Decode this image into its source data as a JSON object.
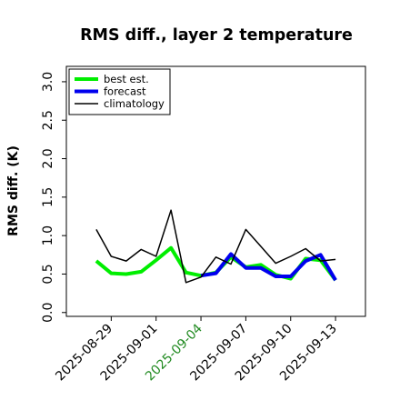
{
  "chart_data": {
    "type": "line",
    "title": "RMS diff., layer 2 temperature",
    "xlabel": "",
    "ylabel": "RMS diff. (K)",
    "ylim": [
      -0.05,
      3.2
    ],
    "xlim": [
      "2025-08-26",
      "2025-09-15"
    ],
    "yticks": [
      "0.0",
      "0.5",
      "1.0",
      "1.5",
      "2.0",
      "2.5",
      "3.0"
    ],
    "xticks": [
      {
        "label": "2025-08-29",
        "date": "2025-08-29",
        "color": "#000000"
      },
      {
        "label": "2025-09-01",
        "date": "2025-09-01",
        "color": "#000000"
      },
      {
        "label": "2025-09-04",
        "date": "2025-09-04",
        "color": "#228B22"
      },
      {
        "label": "2025-09-07",
        "date": "2025-09-07",
        "color": "#000000"
      },
      {
        "label": "2025-09-10",
        "date": "2025-09-10",
        "color": "#000000"
      },
      {
        "label": "2025-09-13",
        "date": "2025-09-13",
        "color": "#000000"
      }
    ],
    "grid": false,
    "legend_position": "top-left",
    "series": [
      {
        "name": "best est.",
        "color": "#00ee00",
        "dates": [
          "2025-08-28",
          "2025-08-29",
          "2025-08-30",
          "2025-08-31",
          "2025-09-01",
          "2025-09-02",
          "2025-09-03",
          "2025-09-04",
          "2025-09-05",
          "2025-09-06",
          "2025-09-07",
          "2025-09-08",
          "2025-09-09",
          "2025-09-10",
          "2025-09-11",
          "2025-09-12",
          "2025-09-13"
        ],
        "values": [
          0.67,
          0.51,
          0.5,
          0.53,
          0.68,
          0.84,
          0.52,
          0.48,
          0.52,
          0.72,
          0.59,
          0.62,
          0.49,
          0.44,
          0.7,
          0.68,
          0.42
        ]
      },
      {
        "name": "forecast",
        "color": "#0000ee",
        "dates": [
          "2025-09-04",
          "2025-09-05",
          "2025-09-06",
          "2025-09-07",
          "2025-09-08",
          "2025-09-09",
          "2025-09-10",
          "2025-09-11",
          "2025-09-12",
          "2025-09-13"
        ],
        "values": [
          0.48,
          0.51,
          0.76,
          0.58,
          0.58,
          0.47,
          0.47,
          0.67,
          0.75,
          0.42
        ]
      },
      {
        "name": "climatology",
        "color": "#000000",
        "dates": [
          "2025-08-28",
          "2025-08-29",
          "2025-08-30",
          "2025-08-31",
          "2025-09-01",
          "2025-09-02",
          "2025-09-03",
          "2025-09-04",
          "2025-09-05",
          "2025-09-06",
          "2025-09-07",
          "2025-09-08",
          "2025-09-09",
          "2025-09-10",
          "2025-09-11",
          "2025-09-12",
          "2025-09-13"
        ],
        "values": [
          1.08,
          0.73,
          0.67,
          0.82,
          0.73,
          1.33,
          0.39,
          0.46,
          0.72,
          0.63,
          1.08,
          0.86,
          0.64,
          0.73,
          0.83,
          0.67,
          0.69
        ]
      }
    ]
  }
}
